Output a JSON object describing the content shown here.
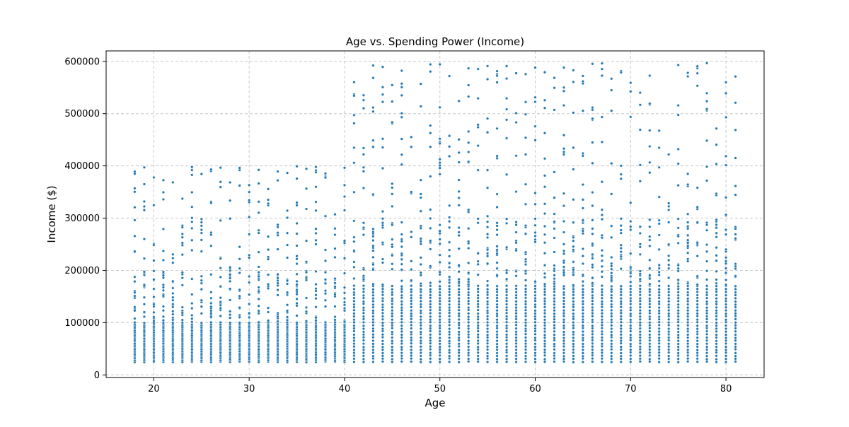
{
  "chart_data": {
    "type": "scatter",
    "title": "Age vs. Spending Power (Income)",
    "xlabel": "Age",
    "ylabel": "Income ($)",
    "xlim": [
      15,
      84
    ],
    "ylim": [
      -5000,
      620000
    ],
    "xticks": [
      20,
      30,
      40,
      50,
      60,
      70,
      80
    ],
    "yticks": [
      0,
      100000,
      200000,
      300000,
      400000,
      500000,
      600000
    ],
    "grid": true,
    "point_color": "#1f77b4",
    "age_range": [
      18,
      81
    ],
    "groups": [
      {
        "ages": [
          18,
          40
        ],
        "dense_band": [
          25000,
          100000
        ],
        "mid_band": [
          100000,
          200000
        ],
        "high_band": [
          200000,
          400000
        ]
      },
      {
        "ages": [
          41,
          81
        ],
        "dense_band": [
          25000,
          170000
        ],
        "mid_band": [
          170000,
          300000
        ],
        "high_band": [
          300000,
          600000
        ]
      }
    ],
    "highlight_points": [
      {
        "x": 19,
        "y": 397000
      },
      {
        "x": 43,
        "y": 592000
      },
      {
        "x": 55,
        "y": 591000
      },
      {
        "x": 75,
        "y": 593000
      },
      {
        "x": 76,
        "y": 578000
      },
      {
        "x": 81,
        "y": 571000
      },
      {
        "x": 37,
        "y": 398000
      },
      {
        "x": 18,
        "y": 357000
      },
      {
        "x": 24,
        "y": 392000
      }
    ]
  }
}
